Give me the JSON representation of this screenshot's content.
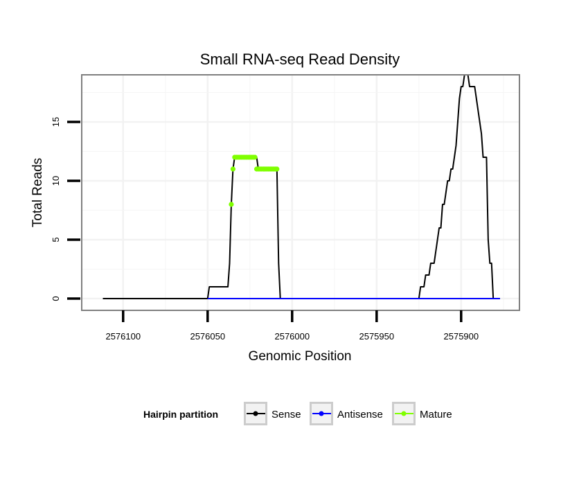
{
  "chart_data": {
    "type": "line",
    "title": "Small RNA-seq Read Density",
    "xlabel": "Genomic Position",
    "ylabel": "Total Reads",
    "xlim": [
      2576124.5,
      2575865.5
    ],
    "x_reversed": true,
    "ylim": [
      -1,
      19
    ],
    "x_ticks": [
      2576100,
      2576050,
      2576000,
      2575950,
      2575900
    ],
    "x_tick_labels": [
      "2576100",
      "2576050",
      "2576000",
      "2575950",
      "2575900"
    ],
    "y_ticks": [
      0,
      5,
      10,
      15
    ],
    "y_tick_labels": [
      "0",
      "5",
      "10",
      "15"
    ],
    "grid": true,
    "legend": {
      "title": "Hairpin partition",
      "position": "bottom",
      "entries": [
        {
          "name": "Sense",
          "color": "#000000"
        },
        {
          "name": "Antisense",
          "color": "#0000ff"
        },
        {
          "name": "Mature",
          "color": "#7fff00"
        }
      ]
    },
    "series": [
      {
        "name": "Sense",
        "color": "#000000",
        "style": "line",
        "x": [
          2576112,
          2576050,
          2576049,
          2576038,
          2576037,
          2576036,
          2576035,
          2576034,
          2576033,
          2576032,
          2576031,
          2576030,
          2576029,
          2576028,
          2576027,
          2576026,
          2576025,
          2576024,
          2576023,
          2576022,
          2576021,
          2576020,
          2576019,
          2576018,
          2576017,
          2576016,
          2576015,
          2576014,
          2576013,
          2576012,
          2576011,
          2576010,
          2576009,
          2576008,
          2576007,
          2576006,
          2576005,
          2576004,
          2576003,
          2576002,
          2576001,
          2576000,
          2575925,
          2575924,
          2575923,
          2575922,
          2575921,
          2575920,
          2575919,
          2575918,
          2575917,
          2575916,
          2575915,
          2575914,
          2575913,
          2575912,
          2575911,
          2575910,
          2575909,
          2575908,
          2575907,
          2575906,
          2575905,
          2575904,
          2575903,
          2575902,
          2575901,
          2575900,
          2575899,
          2575898,
          2575897,
          2575896,
          2575895,
          2575894,
          2575893,
          2575892,
          2575891,
          2575890,
          2575889,
          2575888,
          2575887,
          2575886,
          2575885,
          2575884,
          2575883,
          2575882,
          2575881,
          2575880,
          2575879,
          2575878,
          2575877
        ],
        "y": [
          0,
          0,
          1,
          1,
          3,
          8,
          11,
          12,
          12,
          12,
          12,
          12,
          12,
          12,
          12,
          12,
          12,
          12,
          12,
          12,
          12,
          11,
          11,
          11,
          11,
          11,
          11,
          11,
          11,
          11,
          11,
          11,
          11,
          3,
          0,
          0,
          0,
          0,
          0,
          0,
          0,
          0,
          0,
          1,
          1,
          1,
          2,
          2,
          2,
          3,
          3,
          3,
          4,
          5,
          6,
          6,
          8,
          8,
          9,
          10,
          10,
          11,
          11,
          12,
          13,
          15,
          17,
          18,
          18,
          19,
          19,
          19,
          18,
          18,
          18,
          18,
          17,
          16,
          15,
          14,
          12,
          12,
          12,
          5,
          3,
          3,
          0,
          0,
          0,
          0,
          0
        ]
      },
      {
        "name": "Antisense",
        "color": "#0000ff",
        "style": "line",
        "x": [
          2576050,
          2576000,
          2575925,
          2575877
        ],
        "y": [
          0,
          0,
          0,
          0
        ]
      },
      {
        "name": "Mature",
        "color": "#7fff00",
        "style": "points",
        "x": [
          2576036,
          2576035,
          2576034,
          2576033,
          2576032,
          2576031,
          2576030,
          2576029,
          2576028,
          2576027,
          2576026,
          2576025,
          2576024,
          2576023,
          2576022,
          2576021,
          2576020,
          2576019,
          2576018,
          2576017,
          2576016,
          2576015,
          2576014,
          2576013,
          2576012,
          2576011,
          2576010,
          2576009
        ],
        "y": [
          8,
          11,
          12,
          12,
          12,
          12,
          12,
          12,
          12,
          12,
          12,
          12,
          12,
          12,
          12,
          11,
          11,
          11,
          11,
          11,
          11,
          11,
          11,
          11,
          11,
          11,
          11,
          11
        ]
      }
    ]
  }
}
